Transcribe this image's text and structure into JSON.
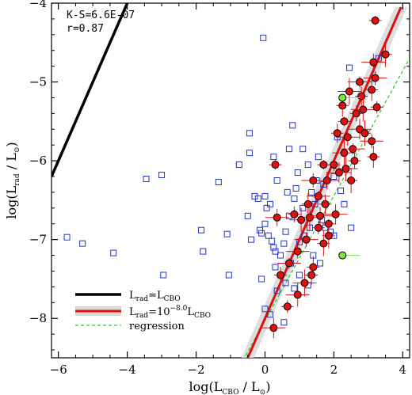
{
  "chart_data": {
    "type": "scatter",
    "xlabel": "log(L_CBO / L_⊙)",
    "ylabel": "log(L_rad / L_⊙)",
    "xlim": [
      -6.2,
      4.2
    ],
    "ylim": [
      -8.5,
      -4.0
    ],
    "x_ticks": [
      -6,
      -4,
      -2,
      0,
      2,
      4
    ],
    "y_ticks": [
      -8,
      -7,
      -6,
      -5,
      -4
    ],
    "x_tick_labels": [
      "−6",
      "−4",
      "−2",
      "0",
      "2",
      "4"
    ],
    "y_tick_labels": [
      "−8",
      "−7",
      "−6",
      "−5",
      "−4"
    ],
    "annotations": {
      "ks": "K-S=6.6E-07",
      "r": "r=0.87"
    },
    "legend": {
      "placement": "bottom-left",
      "entries": [
        {
          "label_main": "L",
          "label_sub": "rad",
          "label_rest": "=L",
          "label_sub2": "CBO",
          "label_exp": "",
          "color": "#000000",
          "style": "solid-thick"
        },
        {
          "label_main": "L",
          "label_sub": "rad",
          "label_rest": "=10",
          "label_sub2": "CBO",
          "label_exp": "−8.0",
          "tail": "L",
          "color": "#dd1111",
          "style": "solid-band"
        },
        {
          "label_main": "regression",
          "label_sub": "",
          "label_rest": "",
          "label_sub2": "",
          "label_exp": "",
          "color": "#22cc22",
          "style": "dashed"
        }
      ]
    },
    "lines": {
      "equality": {
        "x": [
          -6.2,
          -4.0
        ],
        "y": [
          -6.2,
          -4.0
        ],
        "color": "#000000"
      },
      "fit": {
        "x": [
          -0.8,
          3.95
        ],
        "y": [
          -8.8,
          -4.05
        ],
        "color": "#dd1111",
        "band": 0.18
      },
      "regression": {
        "x": [
          -1.1,
          4.2
        ],
        "y": [
          -8.9,
          -4.7
        ],
        "color": "#22cc22"
      }
    },
    "series": [
      {
        "marker": "open-square",
        "color": "#2233cc",
        "points": [
          [
            -0.05,
            -4.44
          ],
          [
            2.45,
            -4.82
          ],
          [
            3.3,
            -4.7
          ],
          [
            -5.3,
            -7.05
          ],
          [
            -5.75,
            -6.97
          ],
          [
            -4.4,
            -7.17
          ],
          [
            -3.45,
            -6.23
          ],
          [
            -3.0,
            -6.18
          ],
          [
            -2.95,
            -7.45
          ],
          [
            -1.85,
            -6.88
          ],
          [
            -1.8,
            -7.15
          ],
          [
            -1.35,
            -6.27
          ],
          [
            -1.1,
            -6.93
          ],
          [
            -1.05,
            -7.45
          ],
          [
            -0.4,
            -7.0
          ],
          [
            -0.45,
            -5.9
          ],
          [
            -0.45,
            -5.65
          ],
          [
            -0.75,
            -6.05
          ],
          [
            -0.5,
            -6.7
          ],
          [
            -0.3,
            -6.45
          ],
          [
            -0.2,
            -6.48
          ],
          [
            -0.15,
            -6.88
          ],
          [
            -0.1,
            -6.92
          ],
          [
            0.0,
            -6.8
          ],
          [
            -0.1,
            -7.5
          ],
          [
            0.0,
            -6.45
          ],
          [
            0.15,
            -6.55
          ],
          [
            0.05,
            -6.6
          ],
          [
            0.1,
            -6.95
          ],
          [
            0.2,
            -7.02
          ],
          [
            0.25,
            -7.1
          ],
          [
            0.3,
            -7.15
          ],
          [
            0.45,
            -7.2
          ],
          [
            0.6,
            -6.9
          ],
          [
            0.7,
            -6.7
          ],
          [
            0.75,
            -7.3
          ],
          [
            0.85,
            -6.48
          ],
          [
            0.9,
            -6.35
          ],
          [
            0.95,
            -6.15
          ],
          [
            0.35,
            -6.25
          ],
          [
            0.25,
            -5.95
          ],
          [
            0.8,
            -5.55
          ],
          [
            1.1,
            -5.85
          ],
          [
            1.15,
            -6.95
          ],
          [
            1.0,
            -7.45
          ],
          [
            1.25,
            -7.58
          ],
          [
            1.4,
            -7.2
          ],
          [
            1.6,
            -7.3
          ],
          [
            1.45,
            -6.55
          ],
          [
            1.5,
            -6.25
          ],
          [
            1.7,
            -6.3
          ],
          [
            1.75,
            -6.85
          ],
          [
            1.9,
            -6.9
          ],
          [
            2.0,
            -6.2
          ],
          [
            2.1,
            -5.7
          ],
          [
            2.2,
            -6.38
          ],
          [
            2.3,
            -6.55
          ],
          [
            1.25,
            -6.05
          ],
          [
            1.0,
            -7.03
          ],
          [
            0.55,
            -7.05
          ],
          [
            0.85,
            -7.62
          ],
          [
            0.35,
            -7.65
          ],
          [
            0.0,
            -7.88
          ],
          [
            0.15,
            -7.95
          ],
          [
            0.55,
            -8.05
          ],
          [
            0.3,
            -7.35
          ],
          [
            0.6,
            -7.55
          ],
          [
            1.1,
            -6.6
          ],
          [
            1.3,
            -6.85
          ],
          [
            1.65,
            -6.75
          ],
          [
            0.7,
            -5.85
          ],
          [
            2.5,
            -6.85
          ],
          [
            1.55,
            -5.95
          ],
          [
            2.0,
            -6.95
          ],
          [
            0.65,
            -6.4
          ],
          [
            1.35,
            -6.4
          ]
        ]
      },
      {
        "marker": "filled-circle-errorbar",
        "color": "#dd1111",
        "points": [
          [
            3.2,
            -4.22
          ],
          [
            3.15,
            -4.75
          ],
          [
            3.5,
            -4.65
          ],
          [
            3.2,
            -4.95
          ],
          [
            3.1,
            -5.1
          ],
          [
            2.75,
            -5.0
          ],
          [
            2.8,
            -5.18
          ],
          [
            2.45,
            -5.12
          ],
          [
            2.65,
            -5.4
          ],
          [
            2.85,
            -5.35
          ],
          [
            3.25,
            -5.32
          ],
          [
            2.75,
            -5.6
          ],
          [
            2.3,
            -5.5
          ],
          [
            2.4,
            -5.7
          ],
          [
            2.9,
            -5.65
          ],
          [
            3.1,
            -5.75
          ],
          [
            3.15,
            -5.95
          ],
          [
            2.55,
            -5.85
          ],
          [
            2.1,
            -5.65
          ],
          [
            2.3,
            -5.9
          ],
          [
            2.6,
            -6.0
          ],
          [
            2.35,
            -6.1
          ],
          [
            2.0,
            -6.05
          ],
          [
            2.15,
            -6.15
          ],
          [
            1.7,
            -6.05
          ],
          [
            1.8,
            -6.25
          ],
          [
            2.5,
            -6.25
          ],
          [
            1.4,
            -6.25
          ],
          [
            1.25,
            -6.55
          ],
          [
            1.55,
            -6.45
          ],
          [
            1.75,
            -6.55
          ],
          [
            1.3,
            -6.72
          ],
          [
            0.85,
            -6.68
          ],
          [
            1.05,
            -6.75
          ],
          [
            1.55,
            -6.85
          ],
          [
            2.05,
            -6.68
          ],
          [
            1.85,
            -6.8
          ],
          [
            0.35,
            -6.72
          ],
          [
            1.7,
            -7.05
          ],
          [
            0.95,
            -7.15
          ],
          [
            1.4,
            -7.35
          ],
          [
            0.7,
            -7.3
          ],
          [
            1.35,
            -7.45
          ],
          [
            1.15,
            -7.55
          ],
          [
            0.45,
            -7.45
          ],
          [
            0.95,
            -7.7
          ],
          [
            0.65,
            -7.85
          ],
          [
            0.25,
            -8.12
          ],
          [
            0.3,
            -6.05
          ],
          [
            1.6,
            -6.7
          ],
          [
            1.85,
            -6.95
          ],
          [
            1.2,
            -7.0
          ],
          [
            2.25,
            -5.3
          ]
        ]
      },
      {
        "marker": "filled-circle-green",
        "color": "#77ee33",
        "points": [
          [
            2.25,
            -5.2
          ],
          [
            2.25,
            -7.2
          ]
        ]
      }
    ]
  }
}
